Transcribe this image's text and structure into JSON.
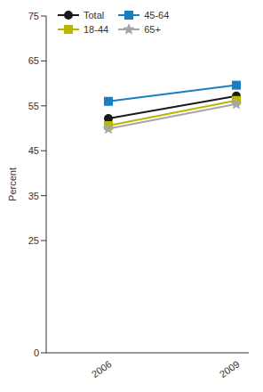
{
  "chart_data": {
    "type": "line",
    "ylabel": "Percent",
    "categories": [
      "2006",
      "2009"
    ],
    "ylim": [
      0,
      75
    ],
    "yticks": [
      0,
      25,
      35,
      45,
      55,
      65,
      75
    ],
    "series": [
      {
        "name": "Total",
        "color": "#1a1a1a",
        "marker": "circle",
        "values": [
          52.2,
          57.2
        ]
      },
      {
        "name": "18-44",
        "color": "#b8b800",
        "marker": "square",
        "values": [
          50.6,
          56.2
        ]
      },
      {
        "name": "45-64",
        "color": "#1a7fc1",
        "marker": "square",
        "values": [
          56.0,
          59.6
        ]
      },
      {
        "name": "65+",
        "color": "#a6a6a6",
        "marker": "star",
        "values": [
          49.9,
          55.4
        ]
      }
    ]
  }
}
